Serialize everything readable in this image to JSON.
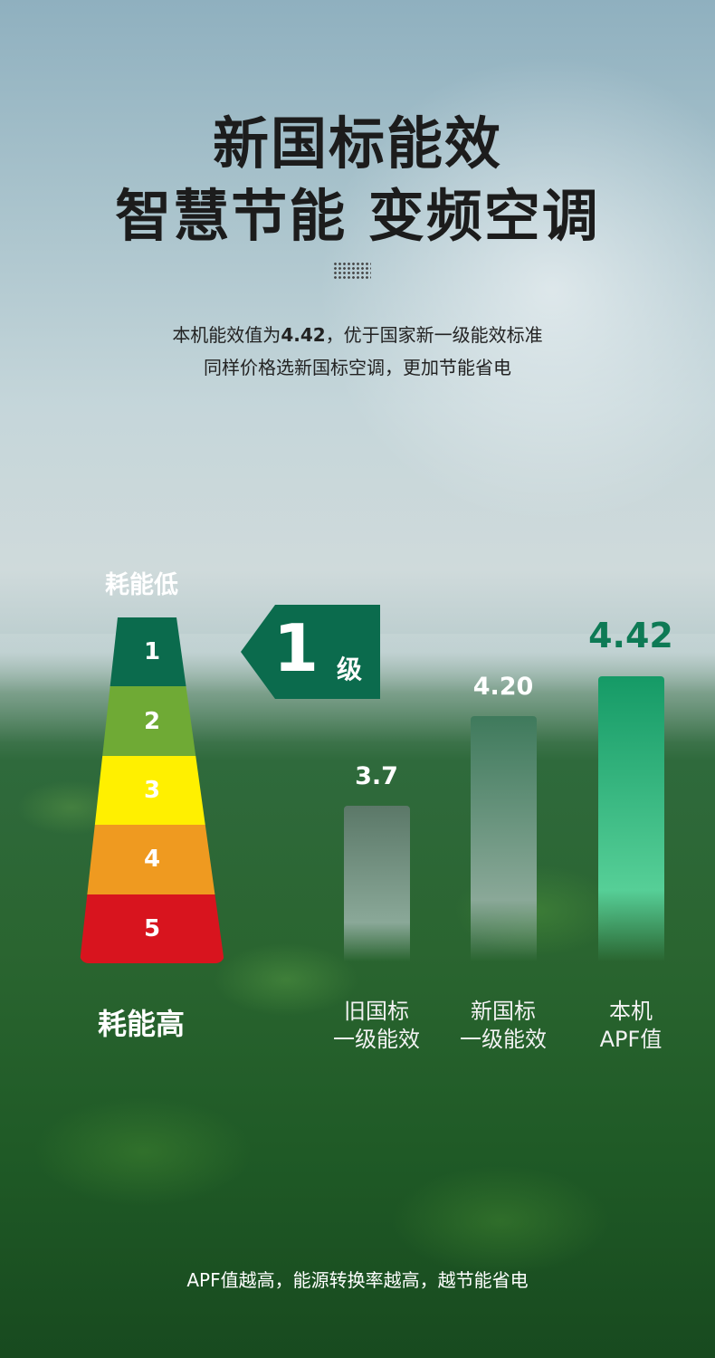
{
  "headline": {
    "line1": "新国标能效",
    "line2": "智慧节能 变频空调"
  },
  "subtitle": {
    "line1_pre": "本机能效值为",
    "line1_value": "4.42",
    "line1_post": "，优于国家新一级能效标准",
    "line2": "同样价格选新国标空调，更加节能省电"
  },
  "ladder": {
    "top_label": "耗能低",
    "bottom_label": "耗能高",
    "levels": [
      {
        "label": "1",
        "color": "#0b6b4d"
      },
      {
        "label": "2",
        "color": "#6faa35"
      },
      {
        "label": "3",
        "color": "#fff000"
      },
      {
        "label": "4",
        "color": "#ef9a20"
      },
      {
        "label": "5",
        "color": "#d8141e"
      }
    ]
  },
  "grade_tag": {
    "number": "1",
    "unit": "级",
    "color": "#0b6b4d"
  },
  "chart_data": {
    "type": "bar",
    "categories": [
      [
        "旧国标",
        "一级能效"
      ],
      [
        "新国标",
        "一级能效"
      ],
      [
        "本机",
        "APF值"
      ]
    ],
    "values": [
      3.7,
      4.2,
      4.42
    ],
    "value_labels": [
      "3.7",
      "4.20",
      "4.42"
    ],
    "colors": [
      "#5b7868",
      "#3f7a5c",
      "#159a66"
    ],
    "highlight_color": "#0e7a55"
  },
  "footer": "APF值越高，能源转换率越高，越节能省电"
}
